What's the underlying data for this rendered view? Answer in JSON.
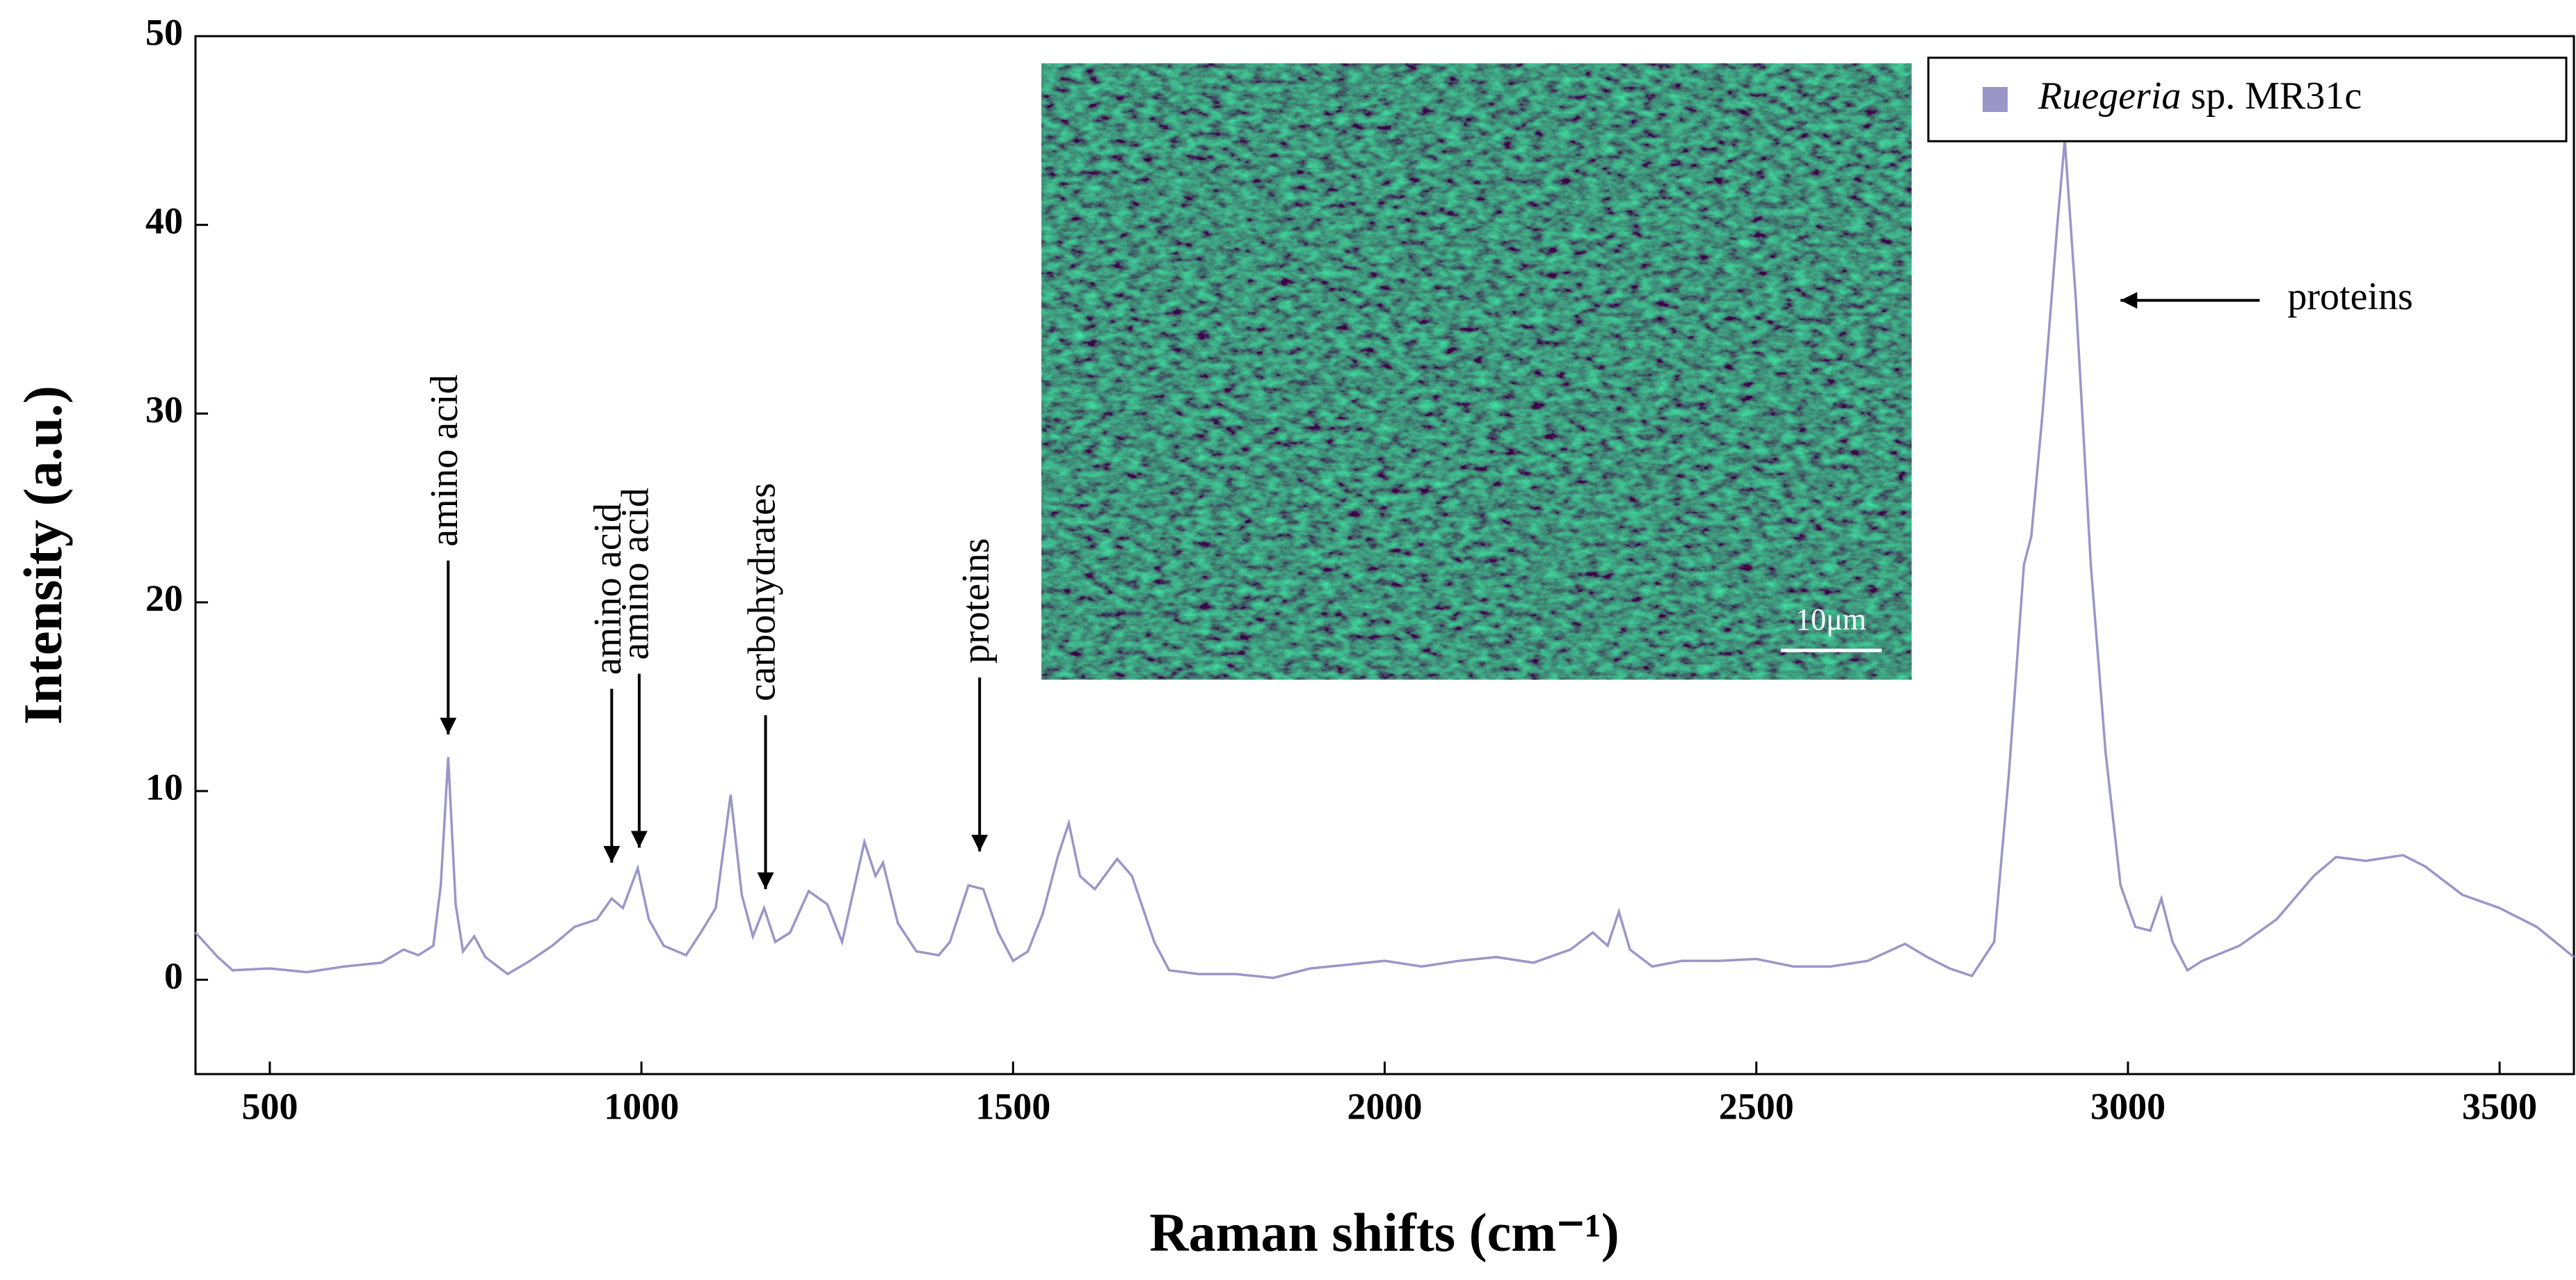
{
  "chart_data": {
    "type": "line",
    "xlabel": "Raman shifts (cm⁻¹)",
    "ylabel": "Intensity (a.u.)",
    "x": [
      400,
      430,
      450,
      500,
      550,
      600,
      650,
      680,
      700,
      720,
      730,
      740,
      750,
      760,
      775,
      790,
      820,
      850,
      880,
      910,
      940,
      960,
      975,
      995,
      1010,
      1030,
      1060,
      1080,
      1100,
      1120,
      1135,
      1150,
      1165,
      1180,
      1200,
      1225,
      1250,
      1270,
      1300,
      1315,
      1325,
      1345,
      1370,
      1400,
      1415,
      1440,
      1460,
      1480,
      1500,
      1520,
      1540,
      1560,
      1575,
      1590,
      1610,
      1640,
      1660,
      1690,
      1710,
      1750,
      1800,
      1850,
      1900,
      1950,
      2000,
      2050,
      2100,
      2150,
      2200,
      2250,
      2280,
      2300,
      2315,
      2330,
      2360,
      2400,
      2450,
      2500,
      2550,
      2600,
      2650,
      2700,
      2730,
      2760,
      2790,
      2820,
      2840,
      2860,
      2870,
      2885,
      2905,
      2915,
      2930,
      2950,
      2970,
      2990,
      3010,
      3030,
      3045,
      3060,
      3080,
      3100,
      3150,
      3200,
      3250,
      3280,
      3320,
      3370,
      3400,
      3450,
      3500,
      3550,
      3600
    ],
    "series": [
      {
        "name": "Ruegeria sp. MR31c",
        "color": "#9a96c8",
        "values": [
          2.5,
          1.2,
          0.5,
          0.6,
          0.4,
          0.7,
          0.9,
          1.6,
          1.3,
          1.8,
          5,
          11.8,
          4,
          1.5,
          2.3,
          1.2,
          0.3,
          1.0,
          1.8,
          2.8,
          3.2,
          4.3,
          3.8,
          5.9,
          3.2,
          1.8,
          1.3,
          2.5,
          3.8,
          9.8,
          4.5,
          2.3,
          3.8,
          2.0,
          2.5,
          4.7,
          4.0,
          2.0,
          7.3,
          5.5,
          6.2,
          3.0,
          1.5,
          1.3,
          2.0,
          5.0,
          4.8,
          2.5,
          1.0,
          1.5,
          3.5,
          6.5,
          8.3,
          5.5,
          4.8,
          6.4,
          5.5,
          2.0,
          0.5,
          0.3,
          0.3,
          0.1,
          0.6,
          0.8,
          1.0,
          0.7,
          1.0,
          1.2,
          0.9,
          1.6,
          2.5,
          1.8,
          3.6,
          1.6,
          0.7,
          1.0,
          1.0,
          1.1,
          0.7,
          0.7,
          1.0,
          1.9,
          1.2,
          0.6,
          0.2,
          2,
          11,
          22,
          23.5,
          30,
          40,
          44.5,
          36,
          22,
          12,
          5,
          2.8,
          2.6,
          4.3,
          2.0,
          0.5,
          1.0,
          1.8,
          3.2,
          5.5,
          6.5,
          6.3,
          6.6,
          6.0,
          4.5,
          3.8,
          2.8,
          1.2
        ]
      }
    ],
    "xlim": [
      400,
      3600
    ],
    "ylim": [
      -5,
      50
    ],
    "xticks": [
      500,
      1000,
      1500,
      2000,
      2500,
      3000,
      3500
    ],
    "yticks": [
      0,
      10,
      20,
      30,
      40,
      50
    ],
    "legend": "upper right",
    "annotations": [
      {
        "text": "amino acid",
        "x": 740,
        "y": 13,
        "orientation": "vertical"
      },
      {
        "text": "amino acid",
        "x": 960,
        "y": 6.2,
        "orientation": "vertical"
      },
      {
        "text": "amino acid",
        "x": 997,
        "y": 7.0,
        "orientation": "vertical"
      },
      {
        "text": "carbohydrates",
        "x": 1167,
        "y": 4.8,
        "orientation": "vertical"
      },
      {
        "text": "proteins",
        "x": 1455,
        "y": 6.8,
        "orientation": "vertical"
      },
      {
        "text": "proteins",
        "x": 2990,
        "y": 36,
        "orientation": "horizontal"
      }
    ],
    "inset_scale_label": "10μm"
  }
}
